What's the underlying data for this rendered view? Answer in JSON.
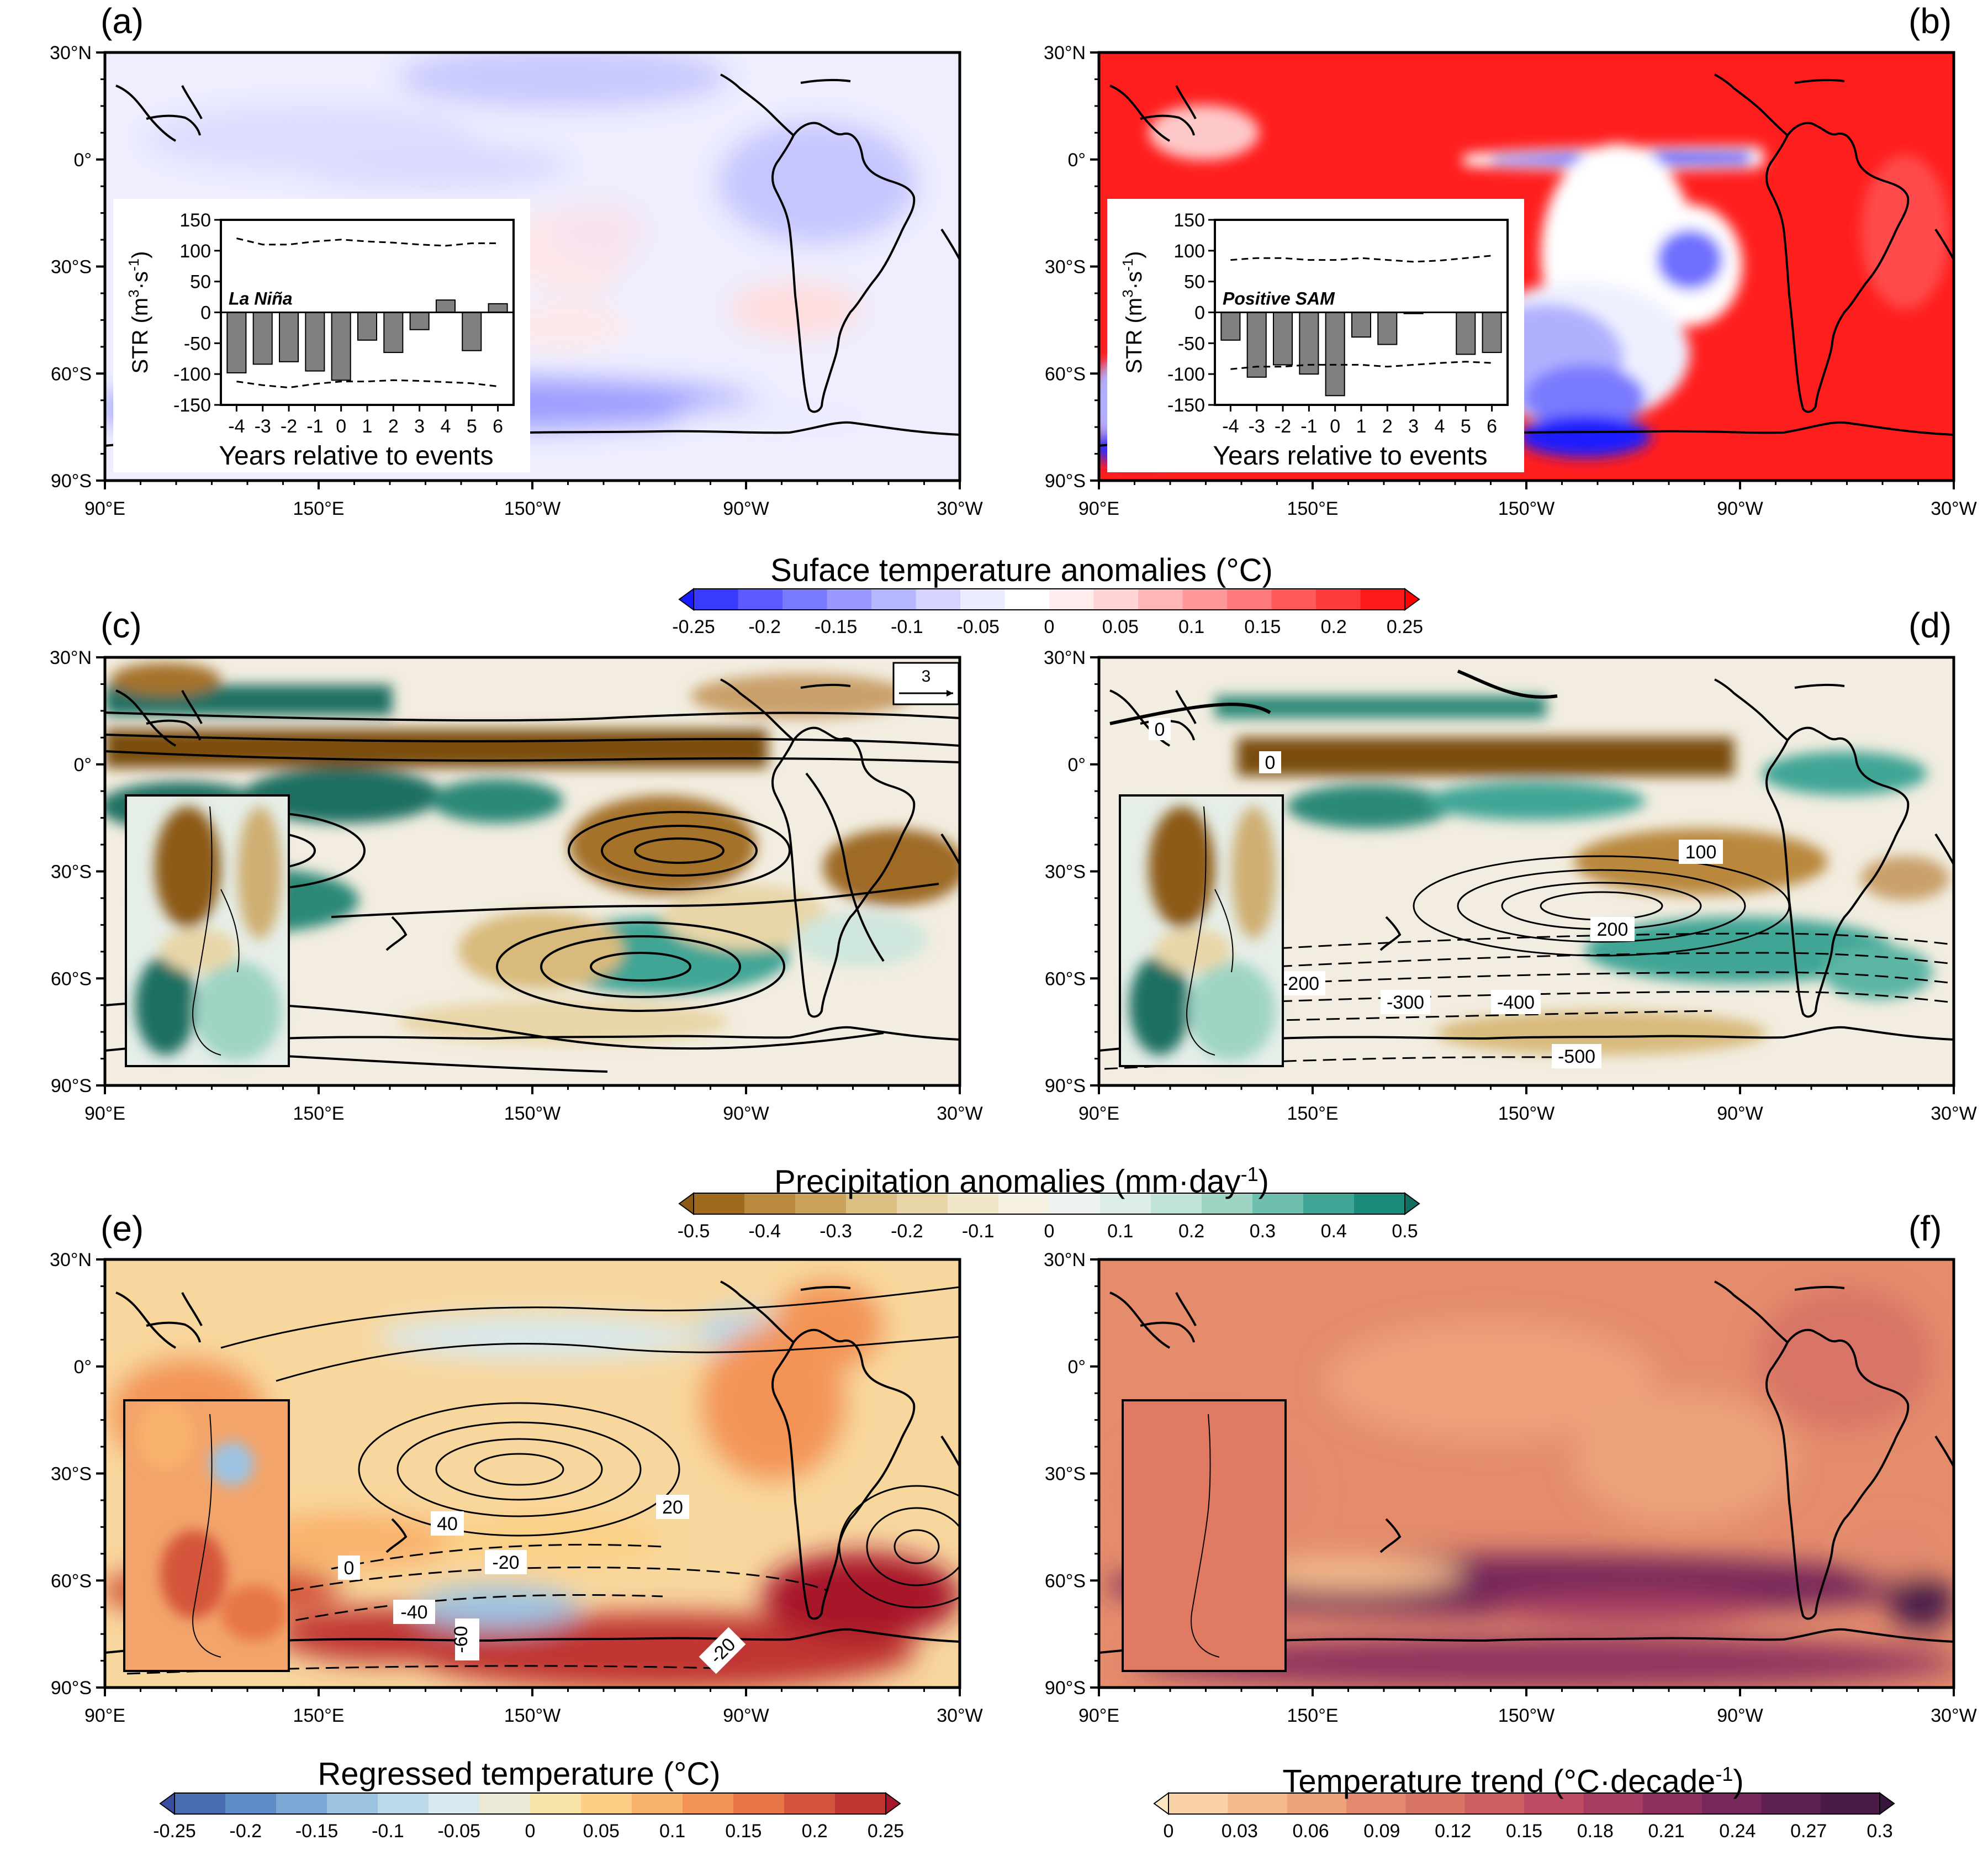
{
  "axes": {
    "lat_ticks": [
      "30°N",
      "0°",
      "30°S",
      "60°S",
      "90°S"
    ],
    "lon_ticks": [
      "90°E",
      "150°E",
      "150°W",
      "90°W",
      "30°W"
    ]
  },
  "panels": [
    {
      "id": "a",
      "label": "(a)",
      "field": "surface temperature anomalies",
      "colorscale": "bwr",
      "shading": "weak negative (blue) almost everywhere; strong negative near 70°S Antarctic coast; weak positive off Chile and 55-60°S western Atlantic",
      "inset": "STR bar chart (La Niña)"
    },
    {
      "id": "b",
      "label": "(b)",
      "field": "surface temperature anomalies",
      "colorscale": "bwr",
      "shading": "strong positive (red) almost everywhere; negative tongue along equatorial Pacific 160°E-110°W; negative anomalies 130°W-100°W mid-latitudes and 170°W-130°W south of 50°S",
      "inset": "STR bar chart (Positive SAM)"
    },
    {
      "id": "c",
      "label": "(c)",
      "field": "precipitation anomalies with wind streamlines",
      "colorscale": "brbg",
      "reference_vector": "3",
      "inset": "Chile precipitation map"
    },
    {
      "id": "d",
      "label": "(d)",
      "field": "precipitation anomalies with geopotential height contours",
      "colorscale": "brbg",
      "contour_labels": [
        "0",
        "0",
        "100",
        "200",
        "-200",
        "-300",
        "-400",
        "-500"
      ],
      "inset": "Chile precipitation map"
    },
    {
      "id": "e",
      "label": "(e)",
      "field": "regressed temperature with contours",
      "colorscale": "rdylbu_r",
      "contour_labels": [
        "40",
        "20",
        "0",
        "-20",
        "-40",
        "-60",
        "-20"
      ],
      "inset": "Chile temperature map"
    },
    {
      "id": "f",
      "label": "(f)",
      "field": "temperature trend",
      "colorscale": "sequential_orange_purple",
      "inset": "Chile temperature trend map"
    }
  ],
  "colorbars": [
    {
      "id": "cb1",
      "title": "Suface temperature anomalies (°C)",
      "ticks": [
        "-0.25",
        "-0.2",
        "-0.15",
        "-0.1",
        "-0.05",
        "0",
        "0.05",
        "0.1",
        "0.15",
        "0.2",
        "0.25"
      ],
      "colors": [
        "#1a1aff",
        "#3a3aff",
        "#5a5aff",
        "#7a7aff",
        "#9898ff",
        "#b6b6ff",
        "#d4d4ff",
        "#ececff",
        "#ffffff",
        "#ffecec",
        "#ffd4d4",
        "#ffb6b6",
        "#ff9898",
        "#ff7a7a",
        "#ff5a5a",
        "#ff3a3a",
        "#ff1a1a",
        "#ff0000"
      ]
    },
    {
      "id": "cb2",
      "title": "Precipitation anomalies (mm·day",
      "title_sup": "-1",
      "title_end": ")",
      "ticks": [
        "-0.5",
        "-0.4",
        "-0.3",
        "-0.2",
        "-0.1",
        "0",
        "0.1",
        "0.2",
        "0.3",
        "0.4",
        "0.5"
      ],
      "colors": [
        "#8c5a12",
        "#a06a1c",
        "#b98a3e",
        "#cba25c",
        "#dcbf82",
        "#e8d6a8",
        "#f1e6c7",
        "#f6f0e0",
        "#eef3f1",
        "#dcece6",
        "#c2e3da",
        "#9fd4c5",
        "#6fbfae",
        "#3fa595",
        "#1b8a79",
        "#0f6f61"
      ]
    },
    {
      "id": "cb3",
      "title": "Regressed temperature (°C)",
      "ticks": [
        "-0.25",
        "-0.2",
        "-0.15",
        "-0.1",
        "-0.05",
        "0",
        "0.05",
        "0.1",
        "0.15",
        "0.2",
        "0.25"
      ],
      "colors": [
        "#3a4ea0",
        "#4a6cb3",
        "#5d8bc5",
        "#7aa8d4",
        "#9cc3e2",
        "#bcd9ec",
        "#d8e9ef",
        "#ece8d6",
        "#f8e3a6",
        "#fbd086",
        "#f9b26c",
        "#f39456",
        "#e67446",
        "#d4553b",
        "#c03632",
        "#a8182c"
      ]
    },
    {
      "id": "cb4",
      "title": "Temperature trend (°C·decade",
      "title_sup": "-1",
      "title_end": ")",
      "ticks": [
        "0",
        "0.03",
        "0.06",
        "0.09",
        "0.12",
        "0.15",
        "0.18",
        "0.21",
        "0.24",
        "0.27",
        "0.3"
      ],
      "colors": [
        "#fbe6c4",
        "#f8d2a6",
        "#f3bb8c",
        "#eca27a",
        "#e38a6e",
        "#d87466",
        "#cb5f62",
        "#bb4c61",
        "#a63c61",
        "#8e305f",
        "#76285a",
        "#5f2152",
        "#4a1b48",
        "#37153d"
      ]
    }
  ],
  "chart_data": [
    {
      "type": "bar",
      "panel": "a",
      "categories": [
        "-4",
        "-3",
        "-2",
        "-1",
        "0",
        "1",
        "2",
        "3",
        "4",
        "5",
        "6"
      ],
      "values": [
        -98,
        -84,
        -80,
        -95,
        -110,
        -45,
        -65,
        -28,
        20,
        -62,
        14
      ],
      "upper_bound": [
        120,
        110,
        110,
        115,
        118,
        115,
        113,
        110,
        108,
        112,
        112
      ],
      "lower_bound": [
        -112,
        -118,
        -122,
        -116,
        -112,
        -112,
        -110,
        -111,
        -113,
        -115,
        -120
      ],
      "annotation": "La Niña",
      "xlabel": "Years relative to events",
      "ylabel": "STR (m",
      "ylabel_sup": "3",
      "ylabel_mid": "·s",
      "ylabel_sup2": "-1",
      "ylabel_end": ")",
      "yticks": [
        "150",
        "100",
        "50",
        "0",
        "-50",
        "-100",
        "-150"
      ],
      "ylim": [
        -150,
        150
      ]
    },
    {
      "type": "bar",
      "panel": "b",
      "categories": [
        "-4",
        "-3",
        "-2",
        "-1",
        "0",
        "1",
        "2",
        "3",
        "4",
        "5",
        "6"
      ],
      "values": [
        -45,
        -105,
        -85,
        -100,
        -135,
        -40,
        -52,
        -2,
        0,
        -68,
        -65
      ],
      "upper_bound": [
        85,
        88,
        88,
        85,
        85,
        88,
        85,
        82,
        84,
        88,
        92
      ],
      "lower_bound": [
        -92,
        -88,
        -88,
        -85,
        -85,
        -85,
        -88,
        -85,
        -82,
        -80,
        -82
      ],
      "annotation": "Positive SAM",
      "xlabel": "Years relative to events",
      "ylabel": "STR (m",
      "ylabel_sup": "3",
      "ylabel_mid": "·s",
      "ylabel_sup2": "-1",
      "ylabel_end": ")",
      "yticks": [
        "150",
        "100",
        "50",
        "0",
        "-50",
        "-100",
        "-150"
      ],
      "ylim": [
        -150,
        150
      ]
    }
  ]
}
